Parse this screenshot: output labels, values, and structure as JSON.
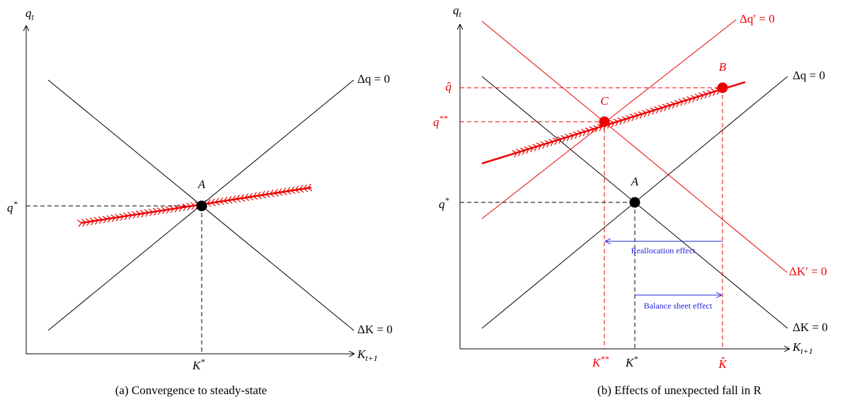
{
  "panel_a": {
    "y_axis": {
      "base": "q",
      "sub": "t"
    },
    "x_axis": {
      "base": "K",
      "sub": "t+1"
    },
    "line_labels": {
      "delta_q": "Δq = 0",
      "delta_k": "ΔK = 0"
    },
    "point": "A",
    "q_star": {
      "base": "q",
      "sup": "*"
    },
    "k_star": {
      "base": "K",
      "sup": "*"
    },
    "caption": "(a) Convergence to steady-state"
  },
  "panel_b": {
    "y_axis": {
      "base": "q",
      "sub": "t"
    },
    "x_axis": {
      "base": "K",
      "sub": "t+1"
    },
    "line_labels": {
      "delta_q_prime": "Δq′ = 0",
      "delta_q": "Δq = 0",
      "delta_k_prime": "ΔK′ = 0",
      "delta_k": "ΔK = 0"
    },
    "points": {
      "b": "B",
      "c": "C",
      "a": "A"
    },
    "q_hat": "q̂",
    "q_double_star": {
      "base": "q",
      "sup": "**"
    },
    "q_star": {
      "base": "q",
      "sup": "*"
    },
    "k_double_star": {
      "base": "K",
      "sup": "**"
    },
    "k_star": {
      "base": "K",
      "sup": "*"
    },
    "k_hat": "K̂",
    "reallocation": "Reallocation effect",
    "balance_sheet": "Balance sheet effect",
    "caption": "(b) Effects of unexpected fall in R"
  }
}
